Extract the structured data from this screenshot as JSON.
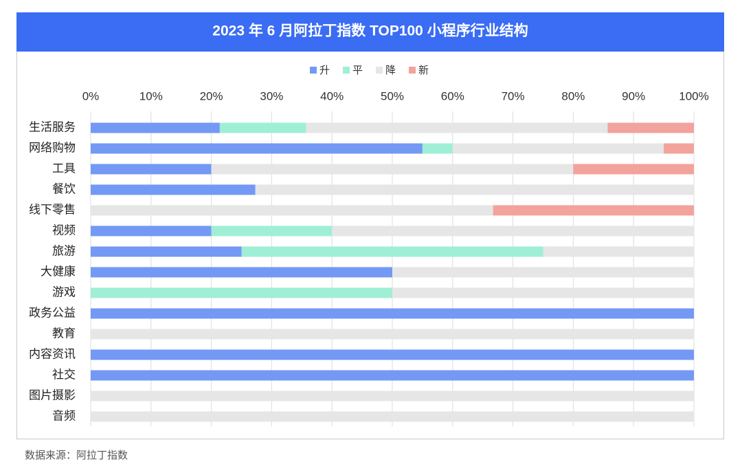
{
  "chart_data": {
    "type": "stacked-bar-horizontal",
    "title": "2023 年 6 月阿拉丁指数 TOP100 小程序行业结构",
    "categories": [
      "生活服务",
      "网络购物",
      "工具",
      "餐饮",
      "线下零售",
      "视频",
      "旅游",
      "大健康",
      "游戏",
      "政务公益",
      "教育",
      "内容资讯",
      "社交",
      "图片摄影",
      "音频"
    ],
    "series": [
      {
        "name": "升",
        "color": "#7399f5",
        "values": [
          21.4,
          55,
          20,
          27.3,
          0,
          20,
          25,
          50,
          0,
          100,
          0,
          100,
          100,
          0,
          0
        ]
      },
      {
        "name": "平",
        "color": "#9eefd6",
        "values": [
          14.3,
          5,
          0,
          0,
          0,
          20,
          50,
          0,
          50,
          0,
          0,
          0,
          0,
          0,
          0
        ]
      },
      {
        "name": "降",
        "color": "#e6e6e6",
        "values": [
          50,
          35,
          60,
          72.7,
          66.7,
          60,
          25,
          50,
          50,
          0,
          100,
          0,
          0,
          100,
          100
        ]
      },
      {
        "name": "新",
        "color": "#f2a39c",
        "values": [
          14.3,
          5,
          20,
          0,
          33.3,
          0,
          0,
          0,
          0,
          0,
          0,
          0,
          0,
          0,
          0
        ]
      }
    ],
    "xlim": [
      0,
      100
    ],
    "xticks": [
      {
        "value": 0,
        "label": "0%"
      },
      {
        "value": 10,
        "label": "10%"
      },
      {
        "value": 20,
        "label": "20%"
      },
      {
        "value": 30,
        "label": "30%"
      },
      {
        "value": 40,
        "label": "40%"
      },
      {
        "value": 50,
        "label": "50%"
      },
      {
        "value": 60,
        "label": "60%"
      },
      {
        "value": 70,
        "label": "70%"
      },
      {
        "value": 80,
        "label": "80%"
      },
      {
        "value": 90,
        "label": "90%"
      },
      {
        "value": 100,
        "label": "100%"
      }
    ],
    "grid": true,
    "legend": "top",
    "source": "数据来源：阿拉丁指数"
  }
}
